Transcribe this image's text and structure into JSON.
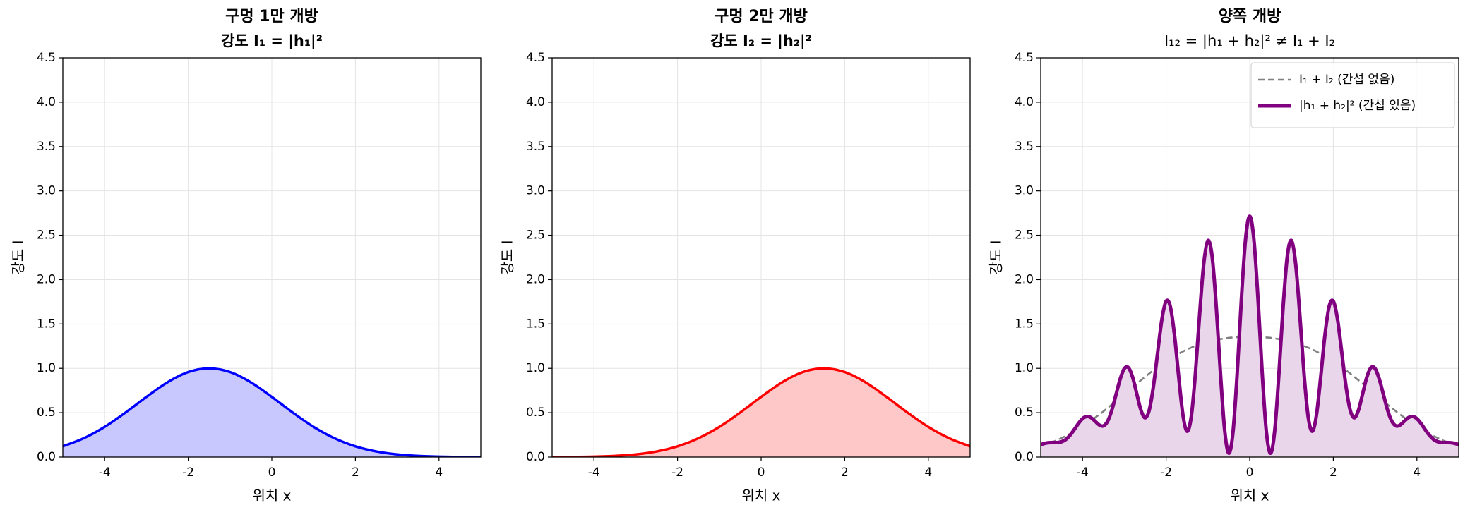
{
  "chart_data": [
    {
      "type": "line",
      "title": "구멍 1만 개방",
      "subtitle": "강도 I₁ = |h₁|²",
      "xlabel": "위치 x",
      "ylabel": "강도 I",
      "xlim": [
        -5,
        5
      ],
      "xticks": [
        -4,
        -2,
        0,
        2,
        4
      ],
      "ylim": [
        0,
        4.5
      ],
      "yticks": [
        {
          "value": 0,
          "label": "0.0"
        },
        0.5,
        {
          "value": 1,
          "label": "1.0"
        },
        1.5,
        {
          "value": 2,
          "label": "2.0"
        },
        2.5,
        {
          "value": 3,
          "label": "3.0"
        },
        3.5,
        {
          "value": 4,
          "label": "4.0"
        },
        4.5
      ],
      "grid": true,
      "x": [
        -5,
        -4.5,
        -4,
        -3.5,
        -3,
        -2.5,
        -2,
        -1.5,
        -1,
        -0.5,
        0,
        0.5,
        1,
        1.5,
        2,
        2.5,
        3,
        3.5,
        4,
        4.5,
        5
      ],
      "series": [
        {
          "color": "#0000ff",
          "fill_color": "#c8c8ff",
          "values": [
            0.121,
            0.212,
            0.34,
            0.502,
            0.678,
            0.842,
            0.958,
            1,
            0.958,
            0.842,
            0.678,
            0.502,
            0.34,
            0.212,
            0.121,
            0.063,
            0.03,
            0.013,
            0.005,
            0.002,
            0.001
          ]
        }
      ]
    },
    {
      "type": "line",
      "title": "구멍 2만 개방",
      "subtitle": "강도 I₂ = |h₂|²",
      "xlabel": "위치 x",
      "ylabel": "강도 I",
      "xlim": [
        -5,
        5
      ],
      "xticks": [
        -4,
        -2,
        0,
        2,
        4
      ],
      "ylim": [
        0,
        4.5
      ],
      "yticks": [
        {
          "value": 0,
          "label": "0.0"
        },
        0.5,
        {
          "value": 1,
          "label": "1.0"
        },
        1.5,
        {
          "value": 2,
          "label": "2.0"
        },
        2.5,
        {
          "value": 3,
          "label": "3.0"
        },
        3.5,
        {
          "value": 4,
          "label": "4.0"
        },
        4.5
      ],
      "grid": true,
      "x": [
        -5,
        -4.5,
        -4,
        -3.5,
        -3,
        -2.5,
        -2,
        -1.5,
        -1,
        -0.5,
        0,
        0.5,
        1,
        1.5,
        2,
        2.5,
        3,
        3.5,
        4,
        4.5,
        5
      ],
      "series": [
        {
          "color": "#ff0000",
          "fill_color": "#ffc8c8",
          "values": [
            0.001,
            0.002,
            0.005,
            0.013,
            0.03,
            0.063,
            0.121,
            0.212,
            0.34,
            0.502,
            0.678,
            0.842,
            0.958,
            1,
            0.958,
            0.842,
            0.678,
            0.502,
            0.34,
            0.212,
            0.121
          ]
        }
      ]
    },
    {
      "type": "line",
      "title": "양쪽 개방",
      "subtitle": "I₁₂ = |h₁ + h₂|² ≠ I₁ + I₂",
      "xlabel": "위치 x",
      "ylabel": "강도 I",
      "xlim": [
        -5,
        5
      ],
      "xticks": [
        -4,
        -2,
        0,
        2,
        4
      ],
      "ylim": [
        0,
        4.5
      ],
      "yticks": [
        {
          "value": 0,
          "label": "0.0"
        },
        0.5,
        {
          "value": 1,
          "label": "1.0"
        },
        1.5,
        {
          "value": 2,
          "label": "2.0"
        },
        2.5,
        {
          "value": 3,
          "label": "3.0"
        },
        3.5,
        {
          "value": 4,
          "label": "4.0"
        },
        4.5
      ],
      "grid": true,
      "legend": "upper right",
      "x": [
        -5,
        -4.9,
        -4.8,
        -4.7,
        -4.6,
        -4.5,
        -4.4,
        -4.3,
        -4.2,
        -4.1,
        -4,
        -3.9,
        -3.8,
        -3.7,
        -3.6,
        -3.5,
        -3.4,
        -3.3,
        -3.2,
        -3.1,
        -3,
        -2.9,
        -2.8,
        -2.7,
        -2.6,
        -2.5,
        -2.4,
        -2.3,
        -2.2,
        -2.1,
        -2,
        -1.9,
        -1.8,
        -1.7,
        -1.6,
        -1.5,
        -1.4,
        -1.3,
        -1.2,
        -1.1,
        -1,
        -0.9,
        -0.8,
        -0.7,
        -0.6,
        -0.5,
        -0.4,
        -0.3,
        -0.2,
        -0.1,
        0,
        0.1,
        0.2,
        0.3,
        0.4,
        0.5,
        0.6,
        0.7,
        0.8,
        0.9,
        1,
        1.1,
        1.2,
        1.3,
        1.4,
        1.5,
        1.6,
        1.7,
        1.8,
        1.9,
        2,
        2.1,
        2.2,
        2.3,
        2.4,
        2.5,
        2.6,
        2.7,
        2.8,
        2.9,
        3,
        3.1,
        3.2,
        3.3,
        3.4,
        3.5,
        3.6,
        3.7,
        3.8,
        3.9,
        4,
        4.1,
        4.2,
        4.3,
        4.4,
        4.5,
        4.6,
        4.7,
        4.8,
        4.9,
        5
      ],
      "series": [
        {
          "name": "I₁ + I₂ (간섭 없음)",
          "color": "#808080",
          "dashed": true,
          "values": [
            0.121,
            0.137,
            0.154,
            0.173,
            0.192,
            0.214,
            0.237,
            0.262,
            0.288,
            0.316,
            0.346,
            0.377,
            0.41,
            0.444,
            0.479,
            0.515,
            0.553,
            0.591,
            0.63,
            0.669,
            0.709,
            0.749,
            0.789,
            0.828,
            0.867,
            0.905,
            0.943,
            0.979,
            1.007,
            1.043,
            1.076,
            1.108,
            1.137,
            1.164,
            1.189,
            1.212,
            1.233,
            1.252,
            1.269,
            1.285,
            1.298,
            1.31,
            1.321,
            1.33,
            1.337,
            1.344,
            1.348,
            1.352,
            1.355,
            1.356,
            1.357,
            1.356,
            1.355,
            1.352,
            1.348,
            1.344,
            1.337,
            1.33,
            1.321,
            1.31,
            1.298,
            1.285,
            1.269,
            1.252,
            1.233,
            1.212,
            1.189,
            1.164,
            1.137,
            1.108,
            1.076,
            1.043,
            1.007,
            0.979,
            0.943,
            0.905,
            0.867,
            0.828,
            0.789,
            0.749,
            0.709,
            0.669,
            0.63,
            0.591,
            0.553,
            0.515,
            0.479,
            0.444,
            0.41,
            0.377,
            0.346,
            0.316,
            0.288,
            0.262,
            0.237,
            0.214,
            0.192,
            0.173,
            0.154,
            0.137,
            0.121
          ]
        },
        {
          "name": "|h₁ + h₂|² (간섭 있음)",
          "color": "#800080",
          "fill_color": "#ead6ea",
          "values": [
            0.14,
            0.155,
            0.162,
            0.164,
            0.163,
            0.173,
            0.198,
            0.245,
            0.308,
            0.377,
            0.432,
            0.457,
            0.445,
            0.404,
            0.362,
            0.351,
            0.403,
            0.527,
            0.702,
            0.878,
            0.997,
            1.007,
            0.897,
            0.709,
            0.525,
            0.443,
            0.536,
            0.81,
            1.189,
            1.556,
            1.757,
            1.697,
            1.377,
            0.909,
            0.483,
            0.291,
            0.45,
            0.938,
            1.596,
            2.176,
            2.44,
            2.265,
            1.696,
            0.944,
            0.305,
            0.044,
            0.28,
            0.939,
            1.771,
            2.452,
            2.714,
            2.452,
            1.771,
            0.939,
            0.28,
            0.044,
            0.305,
            0.944,
            1.696,
            2.265,
            2.44,
            2.176,
            1.596,
            0.938,
            0.45,
            0.291,
            0.483,
            0.909,
            1.377,
            1.697,
            1.757,
            1.556,
            1.189,
            0.81,
            0.536,
            0.443,
            0.525,
            0.709,
            0.897,
            1.007,
            0.997,
            0.878,
            0.702,
            0.527,
            0.403,
            0.351,
            0.362,
            0.404,
            0.445,
            0.457,
            0.432,
            0.377,
            0.308,
            0.245,
            0.198,
            0.173,
            0.163,
            0.164,
            0.162,
            0.155,
            0.14
          ]
        }
      ]
    }
  ]
}
